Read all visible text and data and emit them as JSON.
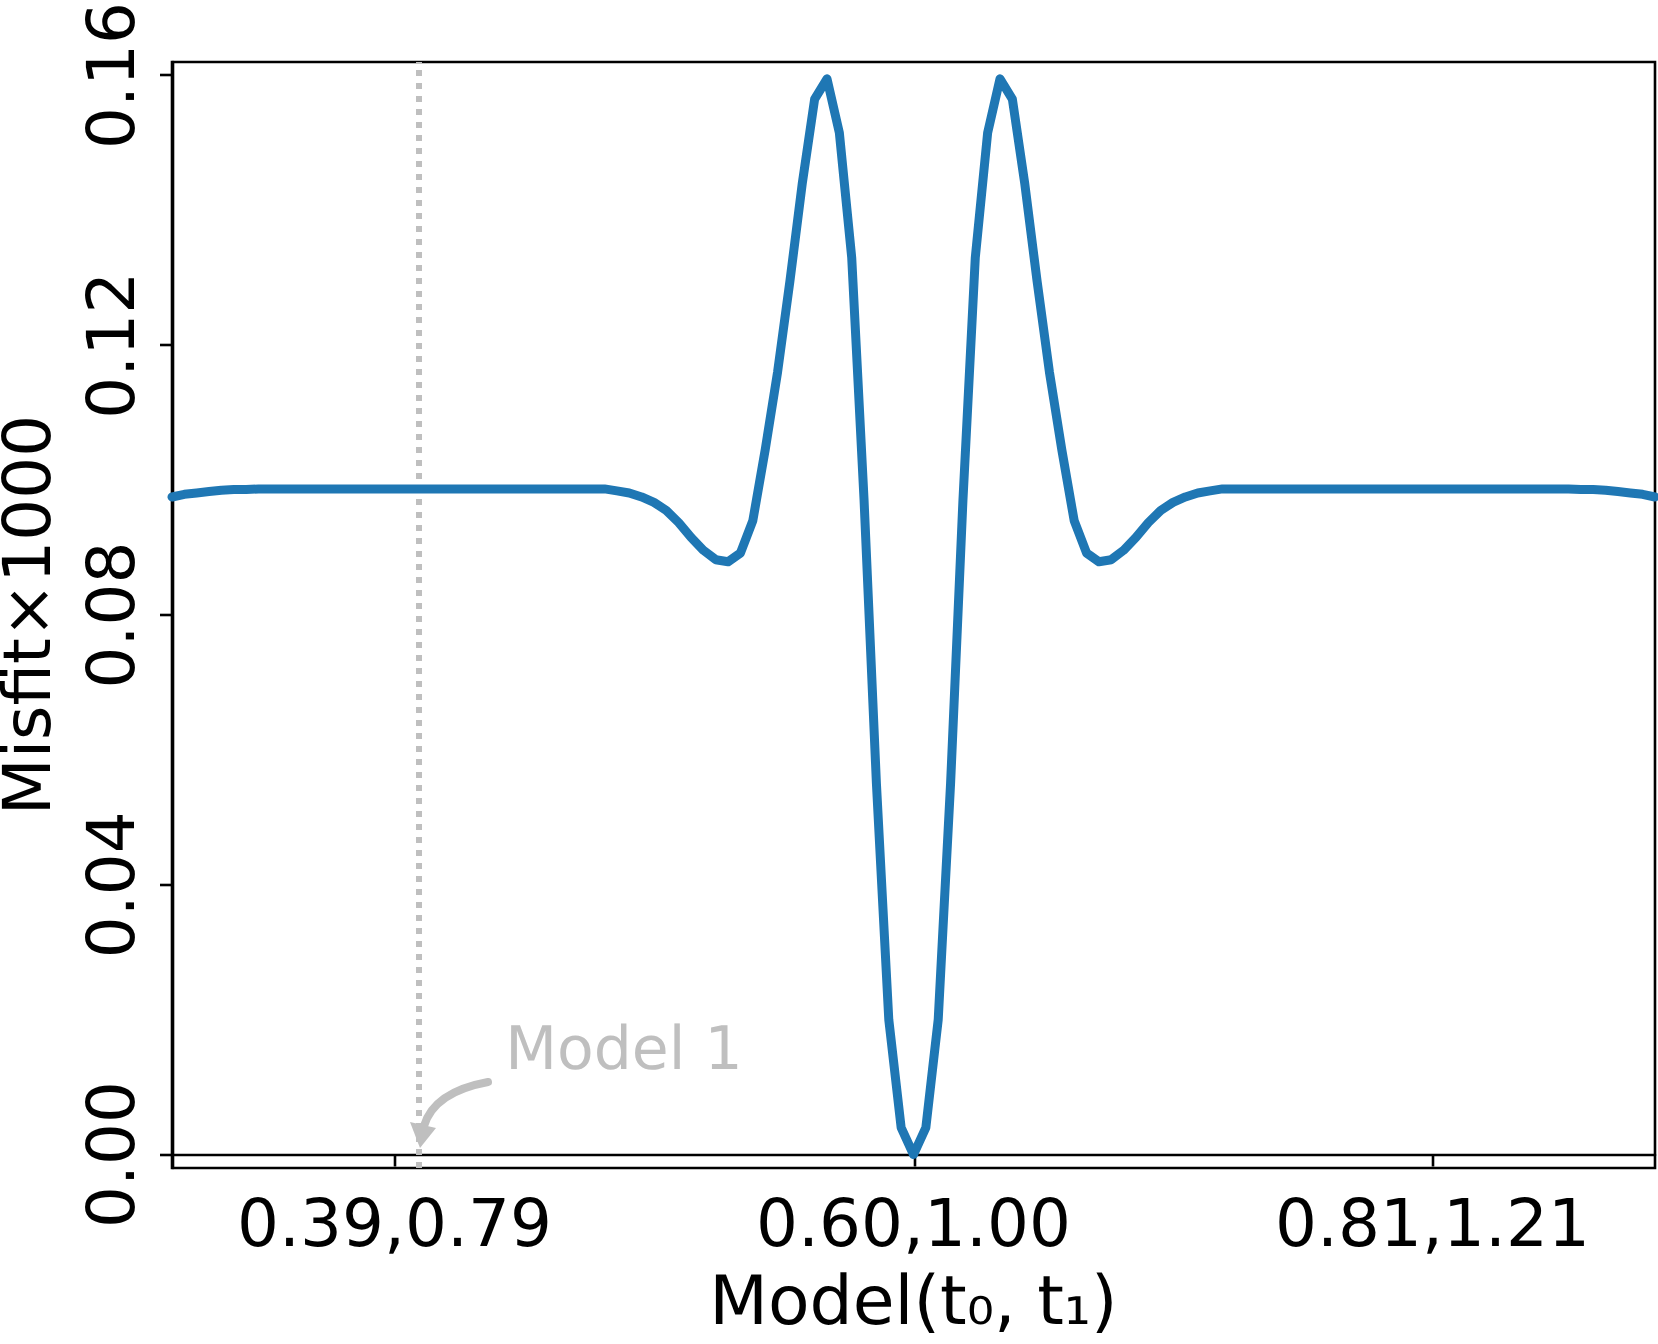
{
  "chart_data": {
    "type": "line",
    "xlabel": "Model(t₀, t₁)",
    "ylabel": "Misfit×1000",
    "categories": [
      null,
      null,
      null,
      null,
      null,
      null,
      null,
      null,
      null,
      null,
      null,
      null,
      null,
      null,
      null,
      null,
      null,
      null,
      "0.39,0.79",
      null,
      null,
      null,
      null,
      null,
      null,
      null,
      null,
      null,
      null,
      null,
      null,
      null,
      null,
      null,
      null,
      null,
      null,
      null,
      null,
      null,
      null,
      null,
      null,
      null,
      null,
      null,
      null,
      null,
      null,
      null,
      null,
      null,
      null,
      null,
      null,
      null,
      null,
      null,
      null,
      null,
      "0.60,1.00",
      null,
      null,
      null,
      null,
      null,
      null,
      null,
      null,
      null,
      null,
      null,
      null,
      null,
      null,
      null,
      null,
      null,
      null,
      null,
      null,
      null,
      null,
      null,
      null,
      null,
      null,
      null,
      null,
      null,
      null,
      null,
      null,
      null,
      null,
      null,
      null,
      null,
      null,
      null,
      null,
      null,
      "0.81,1.21",
      null,
      null,
      null,
      null,
      null,
      null,
      null,
      null,
      null,
      null,
      null,
      null,
      null,
      null,
      null,
      null,
      null,
      null
    ],
    "ylim": [
      -0.002,
      0.162
    ],
    "yticks": [
      {
        "value": 0,
        "label": "0.00"
      },
      0.04,
      0.08,
      0.12,
      0.16
    ],
    "series": [
      {
        "color": "#1f77b4",
        "values": [
          0.0975,
          0.0979,
          0.0981,
          0.0983,
          0.0985,
          0.0986,
          0.0986,
          0.0987,
          0.0987,
          0.0987,
          0.0987,
          0.0987,
          0.0987,
          0.0987,
          0.0987,
          0.0987,
          0.0987,
          0.0987,
          0.0987,
          0.0987,
          0.0987,
          0.0987,
          0.0987,
          0.0987,
          0.0987,
          0.0987,
          0.0987,
          0.0987,
          0.0987,
          0.0987,
          0.0987,
          0.0987,
          0.0987,
          0.0987,
          0.0987,
          0.0987,
          0.0984,
          0.0981,
          0.0975,
          0.0967,
          0.0955,
          0.0937,
          0.0915,
          0.0896,
          0.0882,
          0.0879,
          0.0892,
          0.094,
          0.1045,
          0.116,
          0.1295,
          0.144,
          0.1565,
          0.1595,
          0.1515,
          0.133,
          0.097,
          0.055,
          0.02,
          0.004,
          0.0,
          0.004,
          0.02,
          0.055,
          0.097,
          0.133,
          0.1515,
          0.1595,
          0.1565,
          0.144,
          0.1295,
          0.116,
          0.1045,
          0.094,
          0.0892,
          0.0879,
          0.0882,
          0.0896,
          0.0915,
          0.0937,
          0.0955,
          0.0967,
          0.0975,
          0.0981,
          0.0984,
          0.0987,
          0.0987,
          0.0987,
          0.0987,
          0.0987,
          0.0987,
          0.0987,
          0.0987,
          0.0987,
          0.0987,
          0.0987,
          0.0987,
          0.0987,
          0.0987,
          0.0987,
          0.0987,
          0.0987,
          0.0987,
          0.0987,
          0.0987,
          0.0987,
          0.0987,
          0.0987,
          0.0987,
          0.0987,
          0.0987,
          0.0987,
          0.0987,
          0.0987,
          0.0986,
          0.0986,
          0.0985,
          0.0983,
          0.0981,
          0.0979,
          0.0975
        ]
      }
    ],
    "annotations": [
      "Model 1"
    ],
    "grid": false
  }
}
